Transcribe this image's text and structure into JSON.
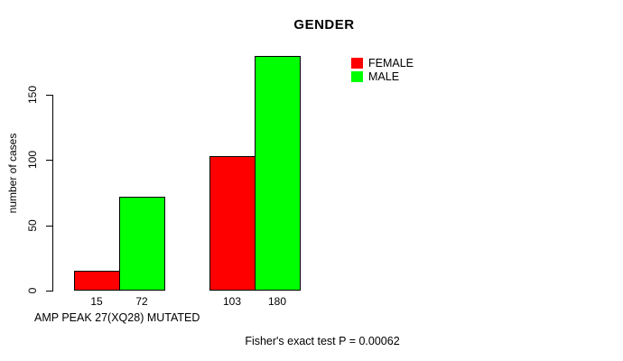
{
  "chart_data": {
    "type": "bar",
    "title": "GENDER",
    "ylabel": "number of cases",
    "xlabel": "AMP PEAK 27(XQ28) MUTATED",
    "annotation": "Fisher's exact test P = 0.00062",
    "categories": [
      "",
      ""
    ],
    "series": [
      {
        "name": "FEMALE",
        "color": "#ff0000",
        "values": [
          15,
          103
        ]
      },
      {
        "name": "MALE",
        "color": "#00ff00",
        "values": [
          72,
          180
        ]
      }
    ],
    "bar_value_labels": [
      "15",
      "72",
      "103",
      "180"
    ],
    "ylim": [
      0,
      150
    ],
    "yticks": [
      0,
      50,
      100,
      150
    ],
    "grid": false,
    "legend_position": "top-right",
    "background_color": "#ffffff",
    "text_color": "#000000"
  }
}
